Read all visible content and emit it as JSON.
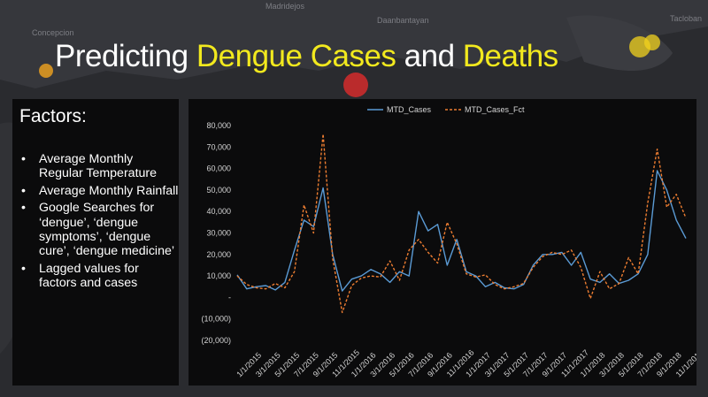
{
  "background": {
    "map_labels": [
      "Madridejos",
      "Daanbantayan",
      "Concepcion",
      "Tacloban"
    ]
  },
  "slide": {
    "title": {
      "prefix": "Predicting ",
      "highlight1": "Dengue Cases",
      "middle": " and ",
      "highlight2": "Deaths"
    },
    "highlight_color": "#f2e91e"
  },
  "factors": {
    "heading": "Factors:",
    "items": [
      "Average Monthly Regular Temperature",
      "Average Monthly Rainfall",
      "Google Searches for ‘dengue’, ‘dengue symptoms’, ‘dengue cure’, ‘dengue medicine’",
      "Lagged values for factors and cases"
    ]
  },
  "chart_data": {
    "type": "line",
    "title": "",
    "xlabel": "",
    "ylabel": "",
    "x": [
      "1/1/2015",
      "2/1/2015",
      "3/1/2015",
      "4/1/2015",
      "5/1/2015",
      "6/1/2015",
      "7/1/2015",
      "8/1/2015",
      "9/1/2015",
      "10/1/2015",
      "11/1/2015",
      "12/1/2015",
      "1/1/2016",
      "2/1/2016",
      "3/1/2016",
      "4/1/2016",
      "5/1/2016",
      "6/1/2016",
      "7/1/2016",
      "8/1/2016",
      "9/1/2016",
      "10/1/2016",
      "11/1/2016",
      "12/1/2016",
      "1/1/2017",
      "2/1/2017",
      "3/1/2017",
      "4/1/2017",
      "5/1/2017",
      "6/1/2017",
      "7/1/2017",
      "8/1/2017",
      "9/1/2017",
      "10/1/2017",
      "11/1/2017",
      "12/1/2017",
      "1/1/2018",
      "2/1/2018",
      "3/1/2018",
      "4/1/2018",
      "5/1/2018",
      "6/1/2018",
      "7/1/2018",
      "8/1/2018",
      "9/1/2018",
      "10/1/2018",
      "11/1/2018",
      "12/1/2018"
    ],
    "x_tick_labels": [
      "1/1/2015",
      "3/1/2015",
      "5/1/2015",
      "7/1/2015",
      "9/1/2015",
      "11/1/2015",
      "1/1/2016",
      "3/1/2016",
      "5/1/2016",
      "7/1/2016",
      "9/1/2016",
      "11/1/2016",
      "1/1/2017",
      "3/1/2017",
      "5/1/2017",
      "7/1/2017",
      "9/1/2017",
      "11/1/2017",
      "1/1/2018",
      "3/1/2018",
      "5/1/2018",
      "7/1/2018",
      "9/1/2018",
      "11/1/2018"
    ],
    "y_tick_labels": [
      "80,000",
      "70,000",
      "60,000",
      "50,000",
      "40,000",
      "30,000",
      "20,000",
      "10,000",
      "-",
      "(10,000)",
      "(20,000)"
    ],
    "y_tick_values": [
      80000,
      70000,
      60000,
      50000,
      40000,
      30000,
      20000,
      10000,
      0,
      -10000,
      -20000
    ],
    "ylim": [
      -20000,
      80000
    ],
    "grid": false,
    "legend_position": "top-center",
    "series": [
      {
        "name": "MTD_Cases",
        "color": "#5b9bd5",
        "style": "solid",
        "values": [
          10500,
          4000,
          5000,
          5500,
          3500,
          7000,
          22000,
          36000,
          33000,
          51000,
          20000,
          3000,
          8500,
          10000,
          13000,
          11000,
          7000,
          12000,
          10000,
          40000,
          31000,
          34000,
          15000,
          27000,
          12000,
          10000,
          5000,
          7000,
          4500,
          4000,
          6000,
          15000,
          20000,
          20000,
          21000,
          15000,
          21000,
          8500,
          7000,
          11000,
          6500,
          8000,
          11000,
          20000,
          59000,
          50000,
          36000,
          27500
        ]
      },
      {
        "name": "MTD_Cases_Fct",
        "color": "#ed7d31",
        "style": "dashed",
        "values": [
          10000,
          6000,
          4500,
          4000,
          6500,
          4500,
          12000,
          43000,
          30000,
          76000,
          18000,
          -7000,
          5500,
          9000,
          10000,
          9500,
          17000,
          8000,
          22000,
          27000,
          21000,
          16000,
          35000,
          25000,
          11000,
          9500,
          10500,
          6000,
          4000,
          5000,
          6500,
          14000,
          19000,
          21000,
          20000,
          22000,
          14000,
          -500,
          12000,
          4000,
          6500,
          18500,
          11000,
          44000,
          69000,
          42000,
          48000,
          37000
        ]
      }
    ]
  }
}
